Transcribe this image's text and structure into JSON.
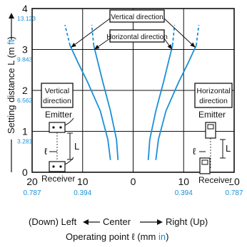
{
  "chart_data": {
    "type": "line",
    "ylabel": "Setting distance L (m",
    "ylabel_unit_alt": "ft",
    "xlabel": "Operating point ℓ (mm",
    "xlabel_unit_alt": "in",
    "x_tick_labels_mm": [
      "20",
      "10",
      "0",
      "10",
      "20"
    ],
    "x_tick_labels_in": [
      "0.787",
      "0.394",
      "0.394",
      "0.787"
    ],
    "y_tick_labels_m": [
      "0",
      "1",
      "2",
      "3",
      "4"
    ],
    "y_tick_labels_ft": [
      "3.281",
      "6.562",
      "9.843",
      "13.123"
    ],
    "xlim": [
      -20,
      20
    ],
    "ylim": [
      0,
      4
    ],
    "grid": true,
    "direction_left": "(Down) Left",
    "direction_center": "Center",
    "direction_right": "Right (Up)",
    "legend_vertical": "Vertical direction",
    "legend_horizontal": "Horizontal direction",
    "series": [
      {
        "name": "Vertical direction",
        "left": [
          [
            -4.5,
            0.3
          ],
          [
            -5,
            0.8
          ],
          [
            -6.5,
            1.5
          ],
          [
            -9,
            2.2
          ],
          [
            -11,
            2.7
          ],
          [
            -12.5,
            3.1
          ],
          [
            -13.5,
            3.6
          ]
        ],
        "right": [
          [
            4.5,
            0.3
          ],
          [
            5,
            0.8
          ],
          [
            6.5,
            1.5
          ],
          [
            9,
            2.2
          ],
          [
            11,
            2.7
          ],
          [
            12.5,
            3.1
          ],
          [
            13,
            3.6
          ]
        ]
      },
      {
        "name": "Horizontal direction",
        "left": [
          [
            -3,
            0.3
          ],
          [
            -3.3,
            0.8
          ],
          [
            -4.5,
            1.5
          ],
          [
            -6,
            2.2
          ],
          [
            -7,
            2.7
          ],
          [
            -7.8,
            3.1
          ],
          [
            -8.2,
            3.6
          ]
        ],
        "right": [
          [
            3,
            0.3
          ],
          [
            3.3,
            0.8
          ],
          [
            4.5,
            1.5
          ],
          [
            6,
            2.2
          ],
          [
            7,
            2.7
          ],
          [
            7.8,
            3.1
          ],
          [
            8.2,
            3.6
          ]
        ]
      }
    ]
  },
  "diagram_left": {
    "title_line1": "Vertical",
    "title_line2": "direction",
    "emitter": "Emitter",
    "receiver": "Receiver",
    "ell": "ℓ",
    "L": "L"
  },
  "diagram_right": {
    "title_line1": "Horizontal",
    "title_line2": "direction",
    "emitter": "Emitter",
    "receiver": "Receiver",
    "ell": "ℓ",
    "L": "L"
  },
  "colors": {
    "curve": "#1a8fd8",
    "ink": "#111111",
    "alt_unit": "#1a8fd8"
  }
}
